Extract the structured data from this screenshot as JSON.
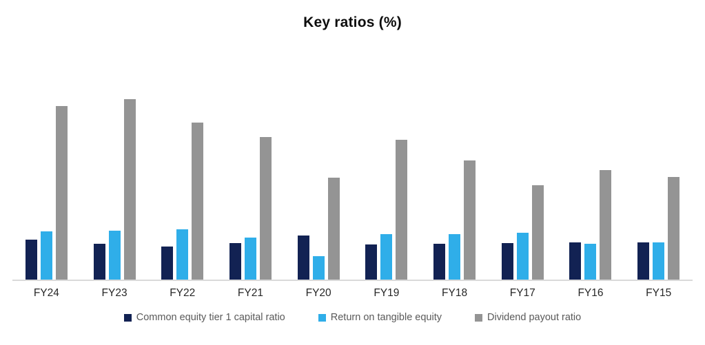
{
  "title": "Key ratios (%)",
  "chart_data": {
    "type": "bar",
    "title": "Key ratios (%)",
    "categories": [
      "FY24",
      "FY23",
      "FY22",
      "FY21",
      "FY20",
      "FY19",
      "FY18",
      "FY17",
      "FY16",
      "FY15"
    ],
    "series": [
      {
        "name": "Common equity tier 1 capital ratio",
        "color": "#122253",
        "values": [
          14.5,
          13.0,
          12.0,
          13.3,
          16.0,
          12.8,
          13.0,
          13.3,
          13.5,
          13.5
        ]
      },
      {
        "name": "Return on tangible equity",
        "color": "#2FAEE9",
        "values": [
          17.5,
          17.8,
          18.3,
          15.3,
          8.6,
          16.5,
          16.5,
          17.0,
          13.0,
          13.5
        ]
      },
      {
        "name": "Dividend payout ratio",
        "color": "#949494",
        "values": [
          63.0,
          65.5,
          57.0,
          51.8,
          37.0,
          50.8,
          43.3,
          34.3,
          39.8,
          37.3
        ]
      }
    ],
    "xlabel": "",
    "ylabel": "",
    "ylim": [
      0,
      75
    ],
    "y_axis_labels_visible": false,
    "grid": false,
    "legend_position": "bottom",
    "axis_line_color": "#D9D9D9",
    "tick_label_color": "#262626",
    "legend_text_color": "#595959"
  }
}
